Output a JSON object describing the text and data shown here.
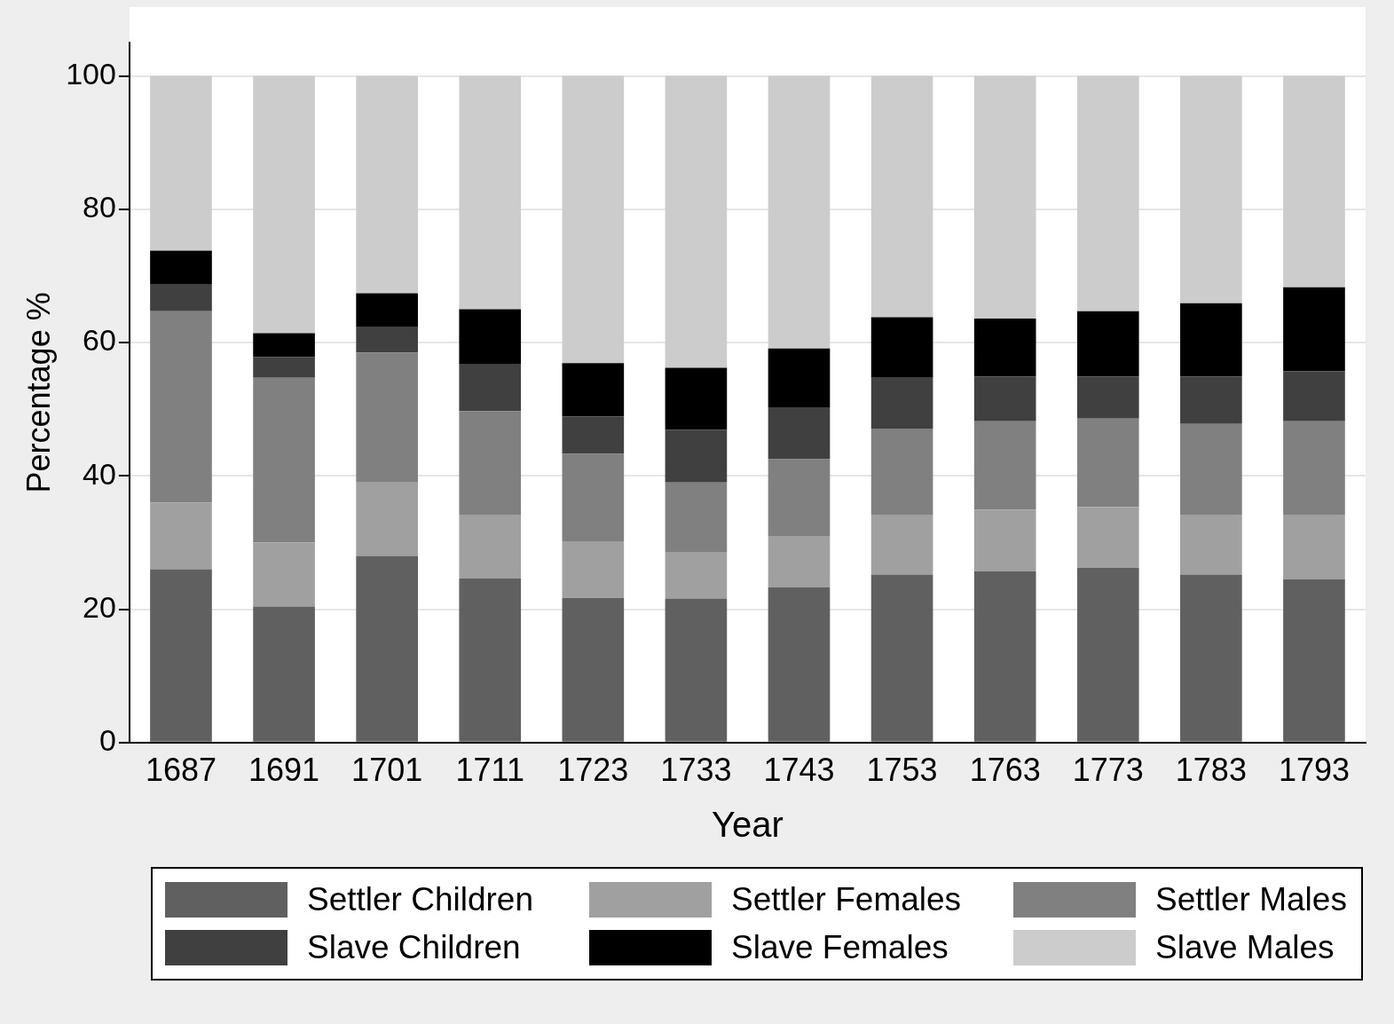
{
  "chart_data": {
    "type": "bar",
    "stacked": true,
    "xlabel": "Year",
    "ylabel": "Percentage %",
    "categories": [
      "1687",
      "1691",
      "1701",
      "1711",
      "1723",
      "1733",
      "1743",
      "1753",
      "1763",
      "1773",
      "1783",
      "1793"
    ],
    "series": [
      {
        "name": "Settler Children",
        "color": "#606060",
        "values": [
          26.0,
          20.4,
          28.0,
          24.6,
          21.7,
          21.6,
          23.3,
          25.2,
          25.7,
          26.2,
          25.2,
          24.5
        ]
      },
      {
        "name": "Settler Females",
        "color": "#a0a0a0",
        "values": [
          10.0,
          9.6,
          11.1,
          9.6,
          8.5,
          7.0,
          7.6,
          9.0,
          9.2,
          9.1,
          8.9,
          9.6
        ]
      },
      {
        "name": "Settler Males",
        "color": "#808080",
        "values": [
          28.7,
          24.7,
          19.4,
          15.5,
          13.1,
          10.4,
          11.6,
          12.9,
          13.3,
          13.3,
          13.7,
          14.1
        ]
      },
      {
        "name": "Slave Children",
        "color": "#404040",
        "values": [
          4.1,
          3.1,
          3.8,
          7.0,
          5.6,
          7.9,
          7.8,
          7.6,
          6.7,
          6.3,
          7.1,
          7.5
        ]
      },
      {
        "name": "Slave Females",
        "color": "#000000",
        "values": [
          5.0,
          3.6,
          5.1,
          8.3,
          8.0,
          9.3,
          8.8,
          9.1,
          8.7,
          9.8,
          11.0,
          12.6
        ]
      },
      {
        "name": "Slave Males",
        "color": "#cccccc",
        "values": [
          26.2,
          38.6,
          32.6,
          35.0,
          43.1,
          43.8,
          40.9,
          36.2,
          36.4,
          35.3,
          34.1,
          31.7
        ]
      }
    ],
    "ylim": [
      0,
      105
    ],
    "yticks": [
      0,
      20,
      40,
      60,
      80,
      100
    ],
    "grid": "y",
    "legend": "bottom"
  }
}
